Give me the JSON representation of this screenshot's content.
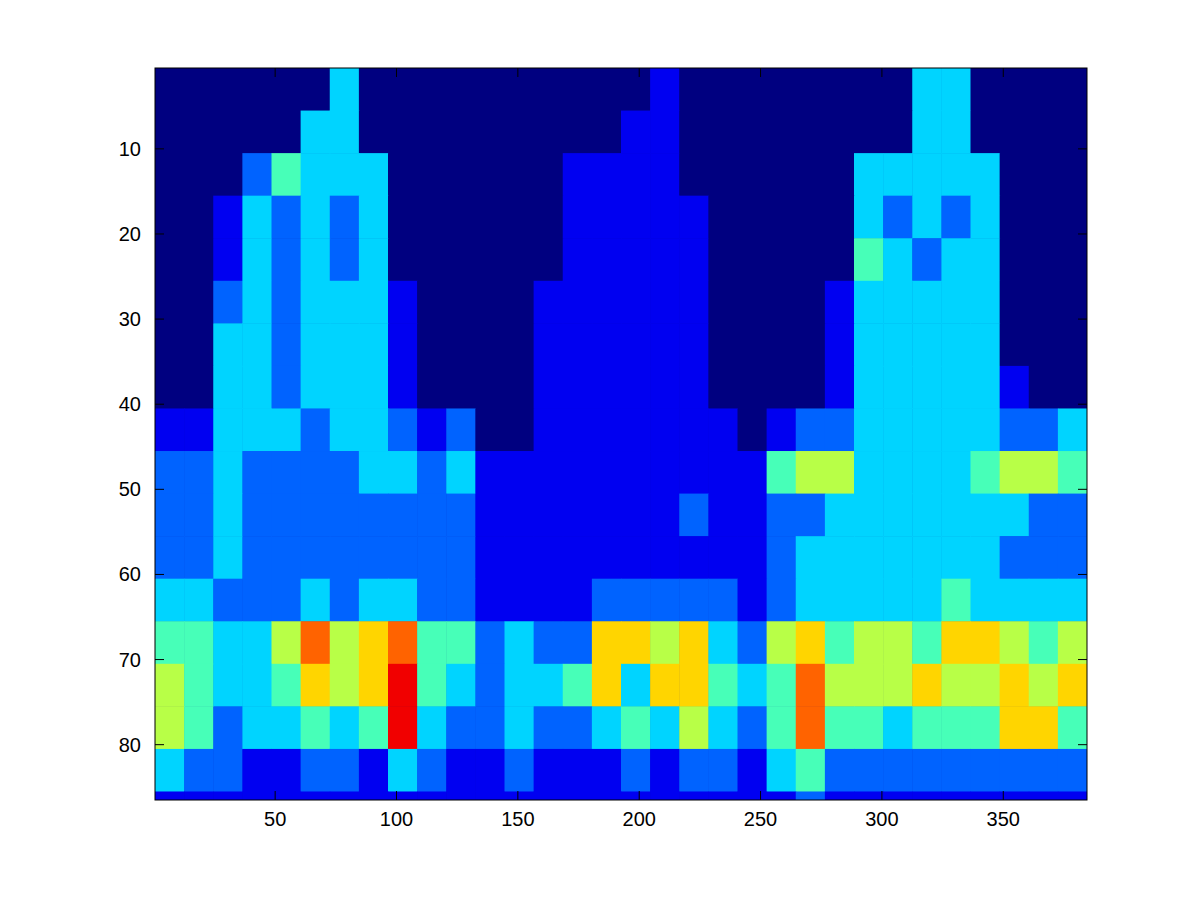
{
  "chart_data": {
    "type": "heatmap",
    "xlim": [
      0.5,
      384.5
    ],
    "ylim": [
      0.5,
      86.5
    ],
    "xticks": [
      50,
      100,
      150,
      200,
      250,
      300,
      350
    ],
    "yticks": [
      10,
      20,
      30,
      40,
      50,
      60,
      70,
      80
    ],
    "grid": false,
    "color_range": [
      0,
      9
    ],
    "x_edges": [
      0.5,
      12.5,
      24.5,
      36.5,
      48.5,
      60.5,
      72.5,
      84.5,
      96.5,
      108.5,
      120.5,
      132.5,
      144.5,
      156.5,
      168.5,
      180.5,
      192.5,
      204.5,
      216.5,
      228.5,
      240.5,
      252.5,
      264.5,
      276.5,
      288.5,
      300.5,
      312.5,
      324.5,
      336.5,
      348.5,
      360.5,
      372.5,
      384.5
    ],
    "y_edges": [
      0.5,
      5.5,
      10.5,
      15.5,
      20.5,
      25.5,
      30.5,
      35.5,
      40.5,
      45.5,
      50.5,
      55.5,
      60.5,
      65.5,
      70.5,
      75.5,
      80.5,
      85.5,
      86.5
    ],
    "cells": [
      [
        0,
        0,
        0,
        0,
        0,
        0,
        3,
        0,
        0,
        0,
        0,
        0,
        0,
        0,
        0,
        0,
        0,
        1,
        0,
        0,
        0,
        0,
        0,
        0,
        0,
        0,
        3,
        3,
        0,
        0,
        0,
        0
      ],
      [
        0,
        0,
        0,
        0,
        0,
        3,
        3,
        0,
        0,
        0,
        0,
        0,
        0,
        0,
        0,
        0,
        1,
        1,
        0,
        0,
        0,
        0,
        0,
        0,
        0,
        0,
        3,
        3,
        0,
        0,
        0,
        0
      ],
      [
        0,
        0,
        0,
        2,
        4,
        3,
        3,
        3,
        0,
        0,
        0,
        0,
        0,
        0,
        1,
        1,
        1,
        1,
        0,
        0,
        0,
        0,
        0,
        0,
        3,
        3,
        3,
        3,
        3,
        0,
        0,
        0
      ],
      [
        0,
        0,
        1,
        3,
        2,
        3,
        2,
        3,
        0,
        0,
        0,
        0,
        0,
        0,
        1,
        1,
        1,
        1,
        1,
        0,
        0,
        0,
        0,
        0,
        3,
        2,
        3,
        2,
        3,
        0,
        0,
        0
      ],
      [
        0,
        0,
        1,
        3,
        2,
        3,
        2,
        3,
        0,
        0,
        0,
        0,
        0,
        0,
        1,
        1,
        1,
        1,
        1,
        0,
        0,
        0,
        0,
        0,
        4,
        3,
        2,
        3,
        3,
        0,
        0,
        0
      ],
      [
        0,
        0,
        2,
        3,
        2,
        3,
        3,
        3,
        1,
        0,
        0,
        0,
        0,
        1,
        1,
        1,
        1,
        1,
        1,
        0,
        0,
        0,
        0,
        1,
        3,
        3,
        3,
        3,
        3,
        0,
        0,
        0
      ],
      [
        0,
        0,
        3,
        3,
        2,
        3,
        3,
        3,
        1,
        0,
        0,
        0,
        0,
        1,
        1,
        1,
        1,
        1,
        1,
        0,
        0,
        0,
        0,
        1,
        3,
        3,
        3,
        3,
        3,
        0,
        0,
        0
      ],
      [
        0,
        0,
        3,
        3,
        2,
        3,
        3,
        3,
        1,
        0,
        0,
        0,
        0,
        1,
        1,
        1,
        1,
        1,
        1,
        0,
        0,
        0,
        0,
        1,
        3,
        3,
        3,
        3,
        3,
        1,
        0,
        0
      ],
      [
        1,
        1,
        3,
        3,
        3,
        2,
        3,
        3,
        2,
        1,
        2,
        0,
        0,
        1,
        1,
        1,
        1,
        1,
        1,
        1,
        0,
        1,
        2,
        2,
        3,
        3,
        3,
        3,
        3,
        2,
        2,
        3
      ],
      [
        2,
        2,
        3,
        2,
        2,
        2,
        2,
        3,
        3,
        2,
        3,
        1,
        1,
        1,
        1,
        1,
        1,
        1,
        1,
        1,
        1,
        4,
        5,
        5,
        3,
        3,
        3,
        3,
        4,
        5,
        5,
        4
      ],
      [
        2,
        2,
        3,
        2,
        2,
        2,
        2,
        2,
        2,
        2,
        2,
        1,
        1,
        1,
        1,
        1,
        1,
        1,
        2,
        1,
        1,
        2,
        2,
        3,
        3,
        3,
        3,
        3,
        3,
        3,
        2,
        2
      ],
      [
        2,
        2,
        3,
        2,
        2,
        2,
        2,
        2,
        2,
        2,
        2,
        1,
        1,
        1,
        1,
        1,
        1,
        1,
        1,
        1,
        1,
        2,
        3,
        3,
        3,
        3,
        3,
        3,
        3,
        2,
        2,
        2
      ],
      [
        3,
        3,
        2,
        2,
        2,
        3,
        2,
        3,
        3,
        2,
        2,
        1,
        1,
        1,
        1,
        2,
        2,
        2,
        2,
        2,
        1,
        2,
        3,
        3,
        3,
        3,
        3,
        4,
        3,
        3,
        3,
        3
      ],
      [
        4,
        4,
        3,
        3,
        5,
        7,
        5,
        6,
        7,
        4,
        4,
        2,
        3,
        2,
        2,
        6,
        6,
        5,
        6,
        3,
        2,
        5,
        6,
        4,
        5,
        5,
        4,
        6,
        6,
        5,
        4,
        5
      ],
      [
        5,
        4,
        3,
        3,
        4,
        6,
        5,
        6,
        8,
        4,
        3,
        2,
        3,
        3,
        4,
        6,
        3,
        6,
        6,
        4,
        3,
        4,
        7,
        5,
        5,
        5,
        6,
        5,
        5,
        6,
        5,
        6
      ],
      [
        5,
        4,
        2,
        3,
        3,
        4,
        3,
        4,
        8,
        3,
        2,
        2,
        3,
        2,
        2,
        3,
        4,
        3,
        5,
        3,
        2,
        4,
        7,
        4,
        4,
        3,
        4,
        4,
        4,
        6,
        6,
        4
      ],
      [
        3,
        2,
        2,
        1,
        1,
        2,
        2,
        1,
        3,
        2,
        1,
        1,
        2,
        1,
        1,
        1,
        2,
        1,
        2,
        2,
        1,
        3,
        4,
        2,
        2,
        2,
        2,
        2,
        2,
        2,
        2,
        2
      ],
      [
        1,
        1,
        1,
        1,
        1,
        1,
        1,
        1,
        1,
        1,
        1,
        1,
        1,
        1,
        1,
        1,
        1,
        1,
        1,
        1,
        1,
        1,
        2,
        1,
        1,
        1,
        1,
        1,
        1,
        1,
        1,
        1
      ]
    ]
  }
}
